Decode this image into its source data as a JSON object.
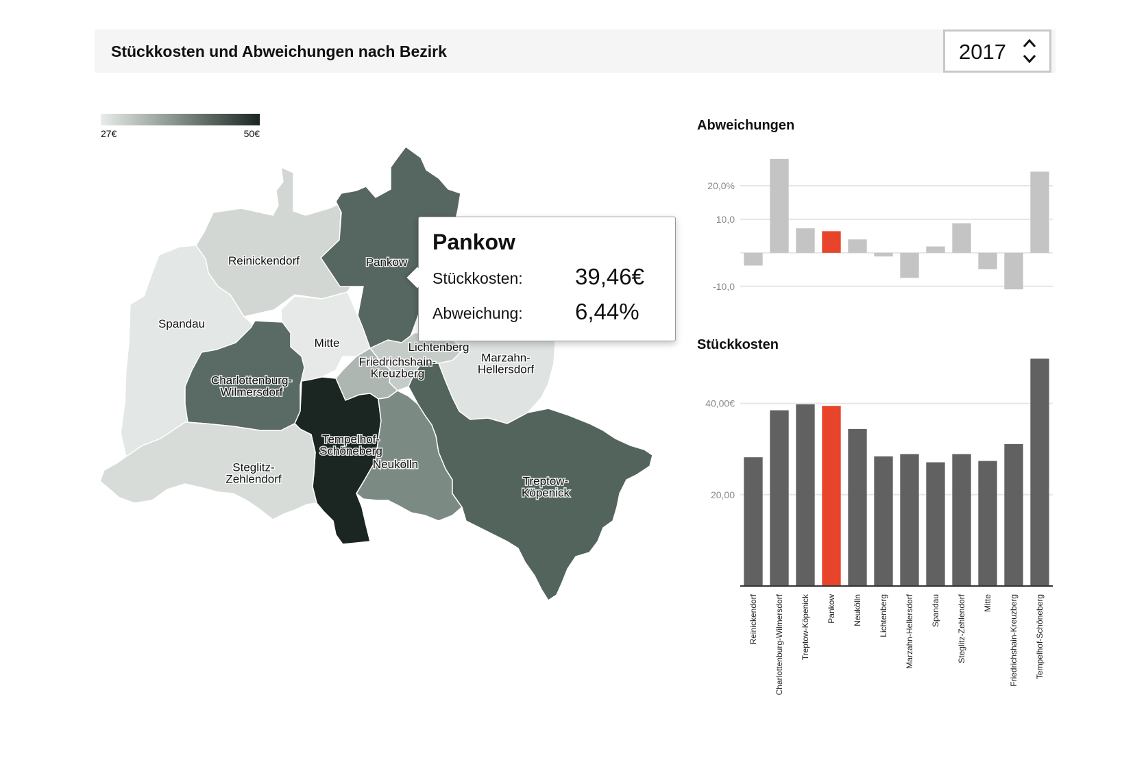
{
  "header": {
    "title": "Stückkosten und Abweichungen nach Bezirk"
  },
  "year_select": {
    "value": "2017"
  },
  "legend": {
    "min_label": "27€",
    "max_label": "50€",
    "min_color": "#e9ecea",
    "max_color": "#1b2622"
  },
  "map": {
    "districts": [
      {
        "name": "Reinickendorf",
        "label_lines": [
          "Reinickendorf"
        ],
        "color": "#d2d7d4"
      },
      {
        "name": "Pankow",
        "label_lines": [
          "Pankow"
        ],
        "color": "#566660"
      },
      {
        "name": "Spandau",
        "label_lines": [
          "Spandau"
        ],
        "color": "#e3e7e5"
      },
      {
        "name": "Mitte",
        "label_lines": [
          "Mitte"
        ],
        "color": "#e6e9e7"
      },
      {
        "name": "Lichtenberg",
        "label_lines": [
          "Lichtenberg"
        ],
        "color": "#c5ccc8"
      },
      {
        "name": "Marzahn-Hellersdorf",
        "label_lines": [
          "Marzahn-",
          "Hellersdorf"
        ],
        "color": "#dfe3e1"
      },
      {
        "name": "Friedrichshain-Kreuzberg",
        "label_lines": [
          "Friedrichshain-",
          "Kreuzberg"
        ],
        "color": "#aeb6b2"
      },
      {
        "name": "Charlottenburg-Wilmersdorf",
        "label_lines": [
          "Charlottenburg-",
          "Wilmersdorf"
        ],
        "color": "#5a6a64"
      },
      {
        "name": "Tempelhof-Schöneberg",
        "label_lines": [
          "Tempelhof-",
          "Schöneberg"
        ],
        "color": "#1b2622"
      },
      {
        "name": "Neukölln",
        "label_lines": [
          "Neukölln"
        ],
        "color": "#7c8a84"
      },
      {
        "name": "Steglitz-Zehlendorf",
        "label_lines": [
          "Steglitz-",
          "Zehlendorf"
        ],
        "color": "#d7dcd9"
      },
      {
        "name": "Treptow-Köpenick",
        "label_lines": [
          "Treptow-",
          "Köpenick"
        ],
        "color": "#53645d"
      }
    ]
  },
  "tooltip": {
    "district": "Pankow",
    "cost_label": "Stückkosten:",
    "cost_value": "39,46€",
    "deviation_label": "Abweichung:",
    "deviation_value": "6,44%"
  },
  "colors": {
    "highlight": "#e8432b",
    "bar_light": "#c4c4c4",
    "bar_dark": "#616161",
    "axis": "#333333",
    "grid": "#e6e6e6"
  },
  "chart_data": [
    {
      "type": "bar",
      "title": "Abweichungen",
      "categories": [
        "Reinickendorf",
        "Charlottenburg-Wilmersdorf",
        "Treptow-Köpenick",
        "Pankow",
        "Neukölln",
        "Lichtenberg",
        "Marzahn-Hellersdorf",
        "Spandau",
        "Steglitz-Zehlendorf",
        "Mitte",
        "Friedrichshain-Kreuzberg",
        "Tempelhof-Schöneberg"
      ],
      "values": [
        -3.8,
        28.0,
        7.3,
        6.44,
        4.0,
        -1.1,
        -7.5,
        1.9,
        8.8,
        -4.9,
        -10.9,
        24.2
      ],
      "highlight": "Pankow",
      "ylim": [
        -12.5,
        29
      ],
      "yticks": [
        {
          "value": 20,
          "label": "20,0%"
        },
        {
          "value": 10,
          "label": "10,0"
        },
        {
          "value": 0,
          "label": ""
        },
        {
          "value": -10,
          "label": "-10,0"
        }
      ],
      "grid": true
    },
    {
      "type": "bar",
      "title": "Stückkosten",
      "categories": [
        "Reinickendorf",
        "Charlottenburg-Wilmersdorf",
        "Treptow-Köpenick",
        "Pankow",
        "Neukölln",
        "Lichtenberg",
        "Marzahn-Hellersdorf",
        "Spandau",
        "Steglitz-Zehlendorf",
        "Mitte",
        "Friedrichshain-Kreuzberg",
        "Tempelhof-Schöneberg"
      ],
      "values": [
        28.2,
        38.5,
        39.8,
        39.46,
        34.4,
        28.4,
        28.9,
        27.1,
        28.9,
        27.4,
        31.1,
        49.8
      ],
      "highlight": "Pankow",
      "ylim": [
        0,
        50
      ],
      "yticks": [
        {
          "value": 40,
          "label": "40,00€"
        },
        {
          "value": 20,
          "label": "20,00"
        }
      ],
      "grid": true
    }
  ]
}
